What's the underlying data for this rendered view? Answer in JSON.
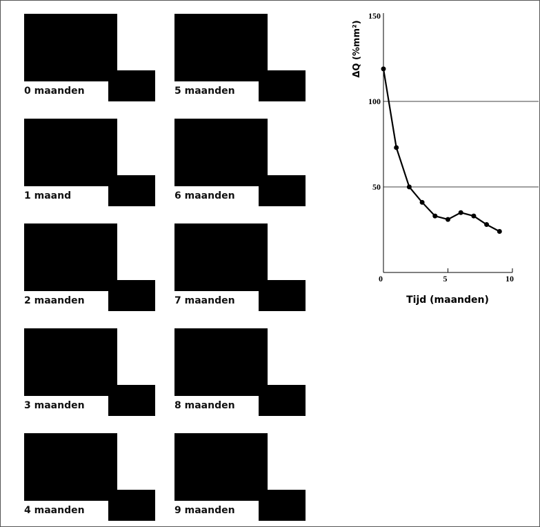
{
  "panels": [
    {
      "label": "0 maanden"
    },
    {
      "label": "1 maand"
    },
    {
      "label": "2 maanden"
    },
    {
      "label": "3 maanden"
    },
    {
      "label": "4 maanden"
    },
    {
      "label": "5 maanden"
    },
    {
      "label": "6 maanden"
    },
    {
      "label": "7 maanden"
    },
    {
      "label": "8 maanden"
    },
    {
      "label": "9 maanden"
    }
  ],
  "chart_data": {
    "type": "line",
    "x_label": "Tijd (maanden)",
    "y_label": "ΔQ (%mm²)",
    "x": [
      0,
      1,
      2,
      3,
      4,
      5,
      6,
      7,
      8,
      9
    ],
    "values": [
      119,
      73,
      50,
      41,
      33,
      31,
      35,
      33,
      28,
      24
    ],
    "color": "#000000",
    "xlim": [
      0,
      10
    ],
    "ylim": [
      0,
      150
    ],
    "xticks": [
      0,
      5,
      10
    ],
    "yticks": [
      50,
      100,
      150
    ],
    "grid": true
  }
}
